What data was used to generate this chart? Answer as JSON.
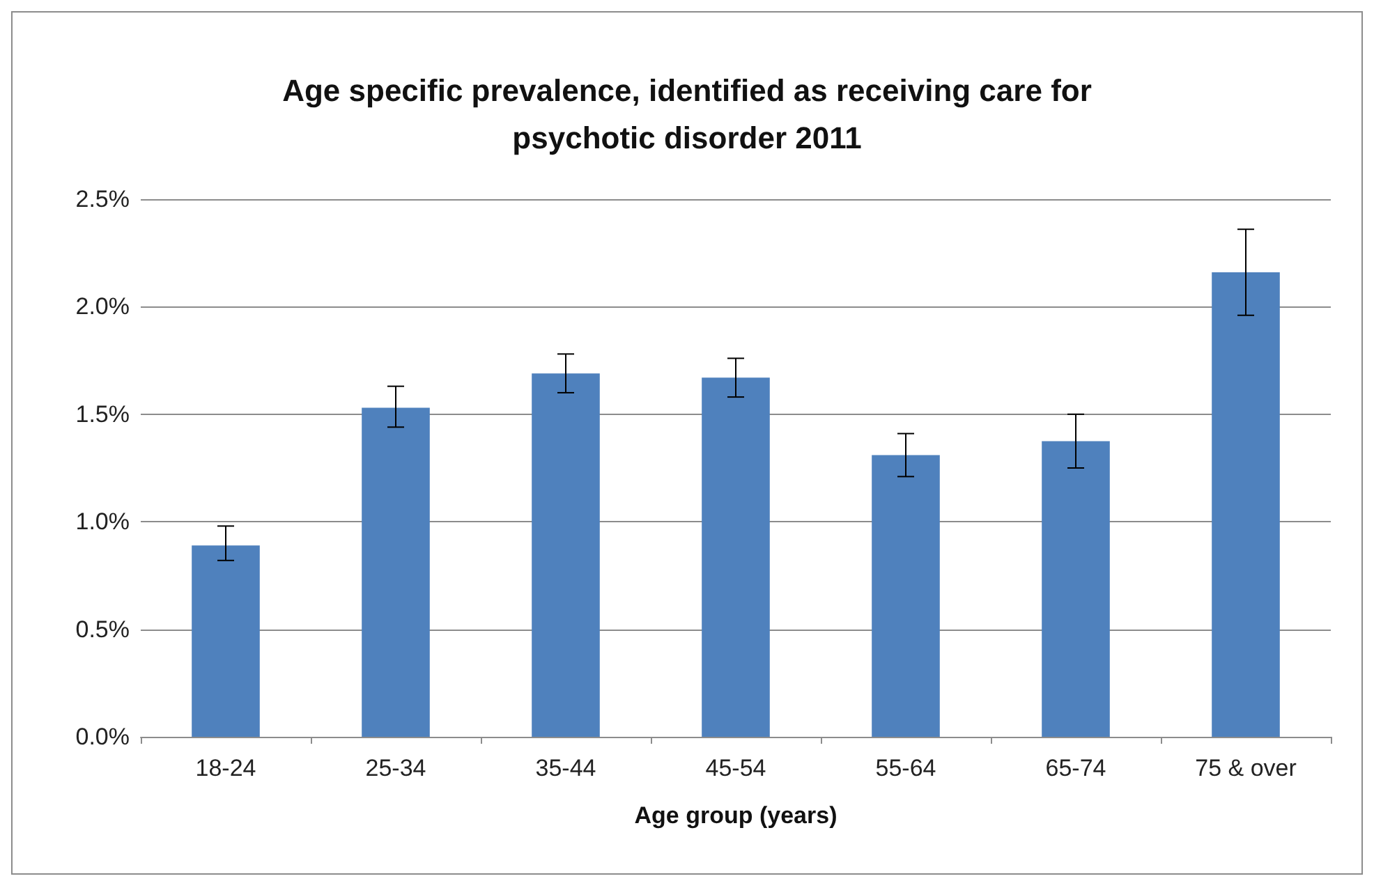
{
  "chart_data": {
    "type": "bar",
    "title": "Age specific prevalence, identified as receiving care for\npsychotic disorder 2011",
    "xlabel": "Age group (years)",
    "categories": [
      "18-24",
      "25-34",
      "35-44",
      "45-54",
      "55-64",
      "65-74",
      "75 & over"
    ],
    "values": [
      0.89,
      1.53,
      1.69,
      1.67,
      1.31,
      1.375,
      2.16
    ],
    "errors": [
      [
        0.82,
        0.98
      ],
      [
        1.44,
        1.63
      ],
      [
        1.6,
        1.78
      ],
      [
        1.58,
        1.76
      ],
      [
        1.21,
        1.41
      ],
      [
        1.25,
        1.5
      ],
      [
        1.96,
        2.36
      ]
    ],
    "color": "#4f81bd",
    "ylim": [
      0,
      2.5
    ],
    "yticks": [
      {
        "value": 0,
        "label": "0.0%"
      },
      {
        "value": 0.5,
        "label": "0.5%"
      },
      {
        "value": 1,
        "label": "1.0%"
      },
      {
        "value": 1.5,
        "label": "1.5%"
      },
      {
        "value": 2,
        "label": "2.0%"
      },
      {
        "value": 2.5,
        "label": "2.5%"
      }
    ],
    "grid": "y"
  }
}
